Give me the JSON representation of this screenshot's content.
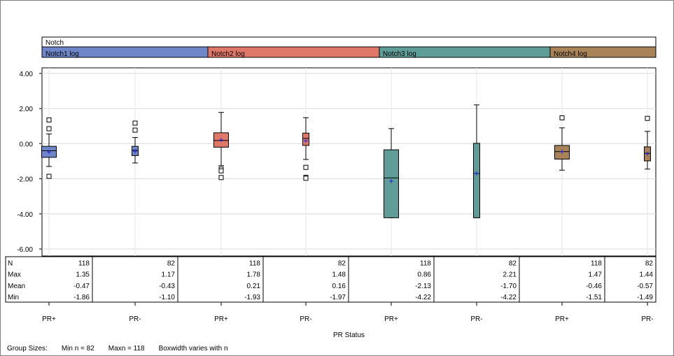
{
  "header": {
    "title": "Notch",
    "groups": [
      {
        "label": "Notch1 log",
        "color": "#6f87c8"
      },
      {
        "label": "Notch2 log",
        "color": "#e0786a"
      },
      {
        "label": "Notch3 log",
        "color": "#5f9e98"
      },
      {
        "label": "Notch4 log",
        "color": "#a88358"
      }
    ]
  },
  "chart_data": {
    "type": "box",
    "ylim": [
      -6,
      4
    ],
    "yticks": [
      "4.00",
      "2.00",
      "0.00",
      "-2.00",
      "-4.00",
      "-6.00"
    ],
    "ytick_values": [
      4,
      2,
      0,
      -2,
      -4,
      -6
    ],
    "xlabel": "PR Status",
    "categories": [
      "PR+",
      "PR-",
      "PR+",
      "PR-",
      "PR+",
      "PR-",
      "PR+",
      "PR-"
    ],
    "boxes": [
      {
        "group": 0,
        "n": 118,
        "max": 1.35,
        "mean": -0.47,
        "min": -1.86,
        "q1": -0.78,
        "median": -0.4,
        "q3": -0.15,
        "whisker_low": -1.3,
        "whisker_high": 0.55,
        "outliers": [
          1.35,
          0.85,
          -1.86
        ]
      },
      {
        "group": 0,
        "n": 82,
        "max": 1.17,
        "mean": -0.43,
        "min": -1.1,
        "q1": -0.68,
        "median": -0.38,
        "q3": -0.15,
        "whisker_low": -1.1,
        "whisker_high": 0.35,
        "outliers": [
          1.17,
          0.77
        ]
      },
      {
        "group": 1,
        "n": 118,
        "max": 1.78,
        "mean": 0.21,
        "min": -1.93,
        "q1": -0.2,
        "median": 0.18,
        "q3": 0.62,
        "whisker_low": -1.25,
        "whisker_high": 1.78,
        "outliers": [
          -1.45,
          -1.55,
          -1.93
        ]
      },
      {
        "group": 1,
        "n": 82,
        "max": 1.48,
        "mean": 0.16,
        "min": -1.97,
        "q1": -0.1,
        "median": 0.3,
        "q3": 0.6,
        "whisker_low": -0.9,
        "whisker_high": 1.48,
        "outliers": [
          -1.35,
          -1.92,
          -1.97
        ]
      },
      {
        "group": 2,
        "n": 118,
        "max": 0.86,
        "mean": -2.13,
        "min": -4.22,
        "q1": -4.22,
        "median": -1.95,
        "q3": -0.35,
        "whisker_low": -4.22,
        "whisker_high": 0.86,
        "outliers": []
      },
      {
        "group": 2,
        "n": 82,
        "max": 2.21,
        "mean": -1.7,
        "min": -4.22,
        "q1": -4.22,
        "median": -1.7,
        "q3": 0.02,
        "whisker_low": -4.22,
        "whisker_high": 2.21,
        "outliers": []
      },
      {
        "group": 3,
        "n": 118,
        "max": 1.47,
        "mean": -0.46,
        "min": -1.51,
        "q1": -0.88,
        "median": -0.45,
        "q3": -0.1,
        "whisker_low": -1.51,
        "whisker_high": 0.9,
        "outliers": [
          1.47
        ]
      },
      {
        "group": 3,
        "n": 82,
        "max": 1.44,
        "mean": -0.57,
        "min": -1.49,
        "q1": -0.98,
        "median": -0.55,
        "q3": -0.18,
        "whisker_low": -1.45,
        "whisker_high": 0.7,
        "outliers": [
          1.44
        ]
      }
    ]
  },
  "stats_table": {
    "row_labels": [
      "N",
      "Max",
      "Mean",
      "Min"
    ],
    "columns": [
      [
        "118",
        "1.35",
        "-0.47",
        "-1.86"
      ],
      [
        "82",
        "1.17",
        "-0.43",
        "-1.10"
      ],
      [
        "118",
        "1.78",
        "0.21",
        "-1.93"
      ],
      [
        "82",
        "1.48",
        "0.16",
        "-1.97"
      ],
      [
        "118",
        "0.86",
        "-2.13",
        "-4.22"
      ],
      [
        "82",
        "2.21",
        "-1.70",
        "-4.22"
      ],
      [
        "118",
        "1.47",
        "-0.46",
        "-1.51"
      ],
      [
        "82",
        "1.44",
        "-0.57",
        "-1.49"
      ]
    ]
  },
  "footer": {
    "group_sizes_label": "Group Sizes:",
    "min_n": "Min n = 82",
    "max_n": "Maxn = 118",
    "box_note": "Boxwidth varies with n"
  }
}
